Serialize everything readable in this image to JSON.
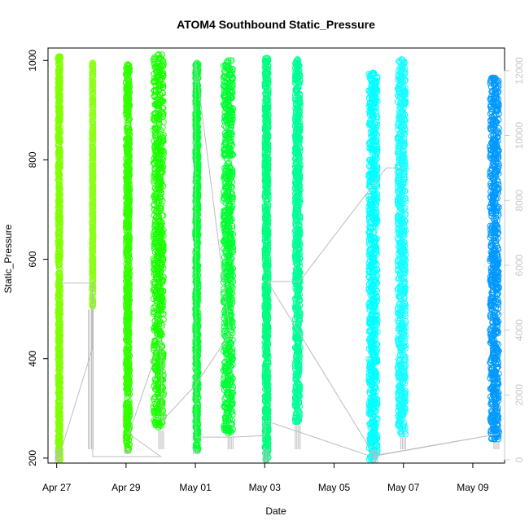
{
  "chart_data": {
    "type": "scatter",
    "title": "ATOM4 Southbound Static_Pressure",
    "xlabel": "Date",
    "ylabel": "Static_Pressure",
    "x_start": "2016-04-26",
    "xlim": [
      "2016-04-26T18:00",
      "2016-05-09T22:00"
    ],
    "ylim": [
      190,
      1025
    ],
    "y2lim": [
      -100,
      12700
    ],
    "x_ticks": [
      {
        "date": "2016-04-27",
        "label": "Apr 27"
      },
      {
        "date": "2016-04-29",
        "label": "Apr 29"
      },
      {
        "date": "2016-05-01",
        "label": "May 01"
      },
      {
        "date": "2016-05-03",
        "label": "May 03"
      },
      {
        "date": "2016-05-05",
        "label": "May 05"
      },
      {
        "date": "2016-05-07",
        "label": "May 07"
      },
      {
        "date": "2016-05-09",
        "label": "May 09"
      }
    ],
    "y_ticks": [
      200,
      400,
      600,
      800,
      1000
    ],
    "y2_ticks": [
      0,
      2000,
      4000,
      6000,
      8000,
      10000,
      12000
    ],
    "grid": false,
    "colors": {
      "secondary_axis": "#c8c8c8",
      "trajectory_line": "#bdbdbd"
    },
    "series": [
      {
        "start": "2016-04-27T01:00",
        "end": "2016-04-27T02:30",
        "min": 196,
        "max": 1008,
        "color": "#80ff00"
      },
      {
        "start": "2016-04-28T00:30",
        "end": "2016-04-28T01:15",
        "min": 505,
        "max": 995,
        "color": "#8cff1a"
      },
      {
        "start": "2016-04-29T00:00",
        "end": "2016-04-29T02:30",
        "min": 215,
        "max": 992,
        "color": "#33ff00"
      },
      {
        "start": "2016-04-29T19:00",
        "end": "2016-04-30T02:00",
        "min": 262,
        "max": 1012,
        "color": "#1aff00"
      },
      {
        "start": "2016-05-01T00:00",
        "end": "2016-05-01T02:00",
        "min": 215,
        "max": 995,
        "color": "#00ff33"
      },
      {
        "start": "2016-05-01T19:30",
        "end": "2016-05-02T02:00",
        "min": 250,
        "max": 1000,
        "color": "#00ff33"
      },
      {
        "start": "2016-05-03T00:00",
        "end": "2016-05-03T02:30",
        "min": 196,
        "max": 1005,
        "color": "#00ff80"
      },
      {
        "start": "2016-05-03T21:00",
        "end": "2016-05-04T00:30",
        "min": 273,
        "max": 1002,
        "color": "#00ff99"
      },
      {
        "start": "2016-05-06T00:00",
        "end": "2016-05-06T06:00",
        "min": 197,
        "max": 975,
        "color": "#00ffff"
      },
      {
        "start": "2016-05-06T20:00",
        "end": "2016-05-07T01:30",
        "min": 248,
        "max": 1002,
        "color": "#1afcff"
      },
      {
        "start": "2016-05-09T12:00",
        "end": "2016-05-09T18:00",
        "min": 238,
        "max": 965,
        "color": "#0099ff"
      }
    ],
    "trajectory": [
      {
        "x": "2016-04-27T01:00",
        "y": 0
      },
      {
        "x": "2016-04-28T00:30",
        "y": 3400
      },
      {
        "x": "2016-04-28T00:40",
        "y": 5450
      },
      {
        "x": "2016-04-27T02:00",
        "y": 5450
      },
      {
        "x": "2016-04-28T01:00",
        "y": 5450
      },
      {
        "x": "2016-04-28T01:00",
        "y": 100
      },
      {
        "x": "2016-04-29T02:00",
        "y": 100
      },
      {
        "x": "2016-04-30T00:00",
        "y": 100
      },
      {
        "x": "2016-04-29T02:00",
        "y": 800
      },
      {
        "x": "2016-04-30T00:00",
        "y": 3700
      },
      {
        "x": "2016-04-30T01:00",
        "y": 1200
      },
      {
        "x": "2016-05-01T00:00",
        "y": 2300
      },
      {
        "x": "2016-05-02T00:00",
        "y": 3900
      },
      {
        "x": "2016-05-01T00:00",
        "y": 12300
      },
      {
        "x": "2016-05-01T00:30",
        "y": 700
      },
      {
        "x": "2016-05-02T02:00",
        "y": 700
      },
      {
        "x": "2016-05-03T00:00",
        "y": 750
      },
      {
        "x": "2016-05-03T01:00",
        "y": 1200
      },
      {
        "x": "2016-05-06T02:00",
        "y": 100
      },
      {
        "x": "2016-05-09T18:00",
        "y": 800
      },
      {
        "x": "2016-05-06T04:00",
        "y": 130
      },
      {
        "x": "2016-05-03T02:00",
        "y": 5500
      },
      {
        "x": "2016-05-04T00:00",
        "y": 5500
      },
      {
        "x": "2016-05-06T12:00",
        "y": 9000
      },
      {
        "x": "2016-05-07T00:00",
        "y": 9000
      }
    ]
  }
}
